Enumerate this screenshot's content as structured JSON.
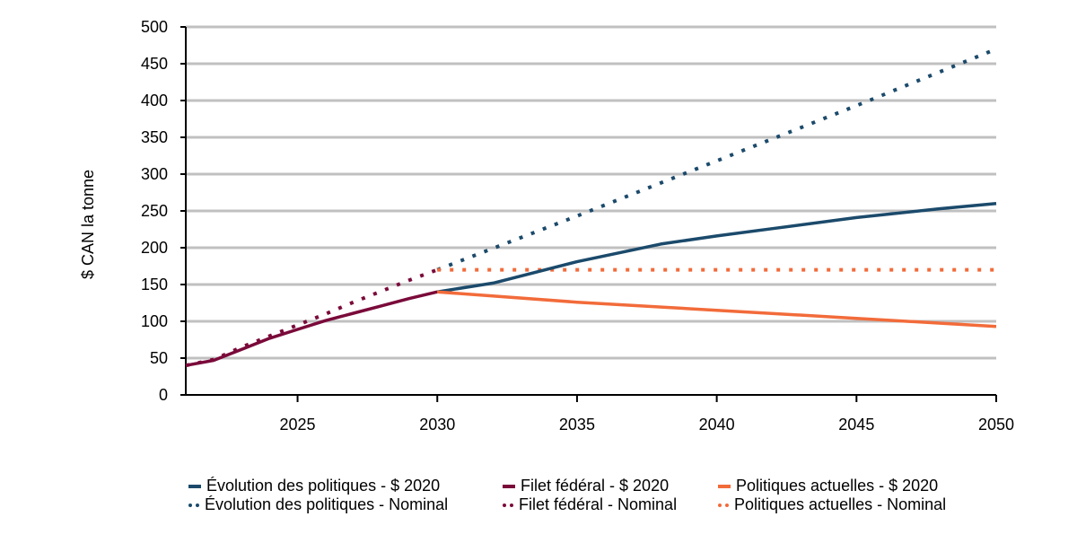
{
  "chart_data": {
    "type": "line",
    "title": "",
    "xlabel": "",
    "ylabel": "$ CAN la tonne",
    "xlim": [
      2021,
      2050
    ],
    "ylim": [
      0,
      500
    ],
    "x_ticks": [
      2025,
      2030,
      2035,
      2040,
      2045,
      2050
    ],
    "y_ticks": [
      0,
      50,
      100,
      150,
      200,
      250,
      300,
      350,
      400,
      450,
      500
    ],
    "grid": "horizontal",
    "legend_position": "bottom",
    "series": [
      {
        "name": "Évolution des politiques - $ 2020",
        "color": "#1b4a6b",
        "style": "solid",
        "points": [
          [
            2030,
            140
          ],
          [
            2032,
            152
          ],
          [
            2035,
            181
          ],
          [
            2038,
            205
          ],
          [
            2040,
            216
          ],
          [
            2042,
            226
          ],
          [
            2045,
            241
          ],
          [
            2048,
            253
          ],
          [
            2050,
            260
          ]
        ]
      },
      {
        "name": "Évolution des politiques - Nominal",
        "color": "#1b4a6b",
        "style": "dotted",
        "points": [
          [
            2030,
            170
          ],
          [
            2035,
            243
          ],
          [
            2040,
            318
          ],
          [
            2045,
            393
          ],
          [
            2050,
            470
          ]
        ]
      },
      {
        "name": "Filet fédéral - $ 2020",
        "color": "#7a0a3a",
        "style": "solid",
        "points": [
          [
            2021,
            40
          ],
          [
            2022,
            47
          ],
          [
            2023,
            62
          ],
          [
            2024,
            77
          ],
          [
            2025,
            89
          ],
          [
            2026,
            101
          ],
          [
            2027,
            111
          ],
          [
            2028,
            121
          ],
          [
            2029,
            131
          ],
          [
            2030,
            140
          ]
        ]
      },
      {
        "name": "Filet fédéral - Nominal",
        "color": "#7a0a3a",
        "style": "dotted",
        "points": [
          [
            2021,
            40
          ],
          [
            2022,
            48
          ],
          [
            2023,
            65
          ],
          [
            2024,
            80
          ],
          [
            2025,
            95
          ],
          [
            2026,
            110
          ],
          [
            2027,
            126
          ],
          [
            2028,
            141
          ],
          [
            2029,
            156
          ],
          [
            2030,
            170
          ]
        ]
      },
      {
        "name": "Politiques actuelles - $ 2020",
        "color": "#f26b3a",
        "style": "solid",
        "points": [
          [
            2030,
            140
          ],
          [
            2035,
            126
          ],
          [
            2040,
            115
          ],
          [
            2045,
            104
          ],
          [
            2050,
            93
          ]
        ]
      },
      {
        "name": "Politiques actuelles - Nominal",
        "color": "#f26b3a",
        "style": "dotted",
        "points": [
          [
            2030,
            170
          ],
          [
            2050,
            170
          ]
        ]
      }
    ]
  },
  "legend": {
    "items": [
      {
        "label": "Évolution des politiques - $ 2020",
        "color": "#1b4a6b",
        "style": "solid"
      },
      {
        "label": "Filet fédéral - $ 2020",
        "color": "#7a0a3a",
        "style": "solid"
      },
      {
        "label": "Politiques actuelles - $ 2020",
        "color": "#f26b3a",
        "style": "solid"
      },
      {
        "label": "Évolution des politiques - Nominal",
        "color": "#1b4a6b",
        "style": "dotted"
      },
      {
        "label": "Filet fédéral - Nominal",
        "color": "#7a0a3a",
        "style": "dotted"
      },
      {
        "label": "Politiques actuelles - Nominal",
        "color": "#f26b3a",
        "style": "dotted"
      }
    ]
  }
}
